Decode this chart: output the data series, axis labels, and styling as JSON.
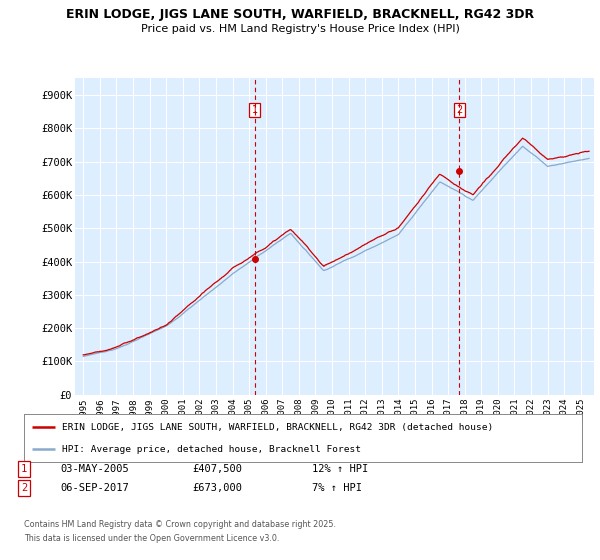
{
  "title": "ERIN LODGE, JIGS LANE SOUTH, WARFIELD, BRACKNELL, RG42 3DR",
  "subtitle": "Price paid vs. HM Land Registry's House Price Index (HPI)",
  "ylim": [
    0,
    950000
  ],
  "yticks": [
    0,
    100000,
    200000,
    300000,
    400000,
    500000,
    600000,
    700000,
    800000,
    900000
  ],
  "ytick_labels": [
    "£0",
    "£100K",
    "£200K",
    "£300K",
    "£400K",
    "£500K",
    "£600K",
    "£700K",
    "£800K",
    "£900K"
  ],
  "background_color": "#ddeeff",
  "grid_color": "#ffffff",
  "line1_color": "#cc0000",
  "line2_color": "#88aacc",
  "sale1_x": 2005.33,
  "sale1_price": 407500,
  "sale2_x": 2017.67,
  "sale2_price": 673000,
  "legend_label1": "ERIN LODGE, JIGS LANE SOUTH, WARFIELD, BRACKNELL, RG42 3DR (detached house)",
  "legend_label2": "HPI: Average price, detached house, Bracknell Forest",
  "footer_line1": "Contains HM Land Registry data © Crown copyright and database right 2025.",
  "footer_line2": "This data is licensed under the Open Government Licence v3.0.",
  "ann1_box": "1",
  "ann1_date": "03-MAY-2005",
  "ann1_price": "£407,500",
  "ann1_hpi": "12% ↑ HPI",
  "ann2_box": "2",
  "ann2_date": "06-SEP-2017",
  "ann2_price": "£673,000",
  "ann2_hpi": "7% ↑ HPI",
  "xlim_left": 1994.5,
  "xlim_right": 2025.8,
  "xtick_years": [
    1995,
    1996,
    1997,
    1998,
    1999,
    2000,
    2001,
    2002,
    2003,
    2004,
    2005,
    2006,
    2007,
    2008,
    2009,
    2010,
    2011,
    2012,
    2013,
    2014,
    2015,
    2016,
    2017,
    2018,
    2019,
    2020,
    2021,
    2022,
    2023,
    2024,
    2025
  ]
}
